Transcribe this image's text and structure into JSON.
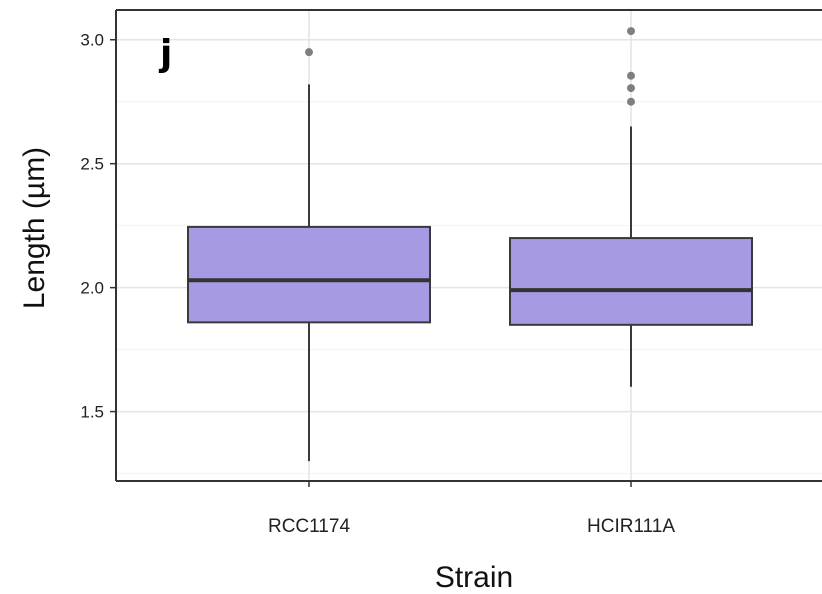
{
  "chart_data": {
    "type": "box",
    "panel_label": "j",
    "xlabel": "Strain",
    "ylabel": "Length (µm)",
    "categories": [
      "RCC1174",
      "HCIR111A"
    ],
    "y_ticks": [
      "1.5",
      "2.0",
      "2.5",
      "3.0"
    ],
    "ylim": [
      1.22,
      3.12
    ],
    "grid": true,
    "box_color": "#a59ae3",
    "box_edge_color": "#3a3a3a",
    "outlier_color": "#7f7f7f",
    "series": [
      {
        "category": "RCC1174",
        "whisker_low": 1.3,
        "q1": 1.86,
        "median": 2.03,
        "q3": 2.245,
        "whisker_high": 2.82,
        "outliers": [
          2.95
        ]
      },
      {
        "category": "HCIR111A",
        "whisker_low": 1.6,
        "q1": 1.85,
        "median": 1.99,
        "q3": 2.2,
        "whisker_high": 2.65,
        "outliers": [
          2.75,
          2.805,
          2.855,
          3.035
        ]
      }
    ]
  }
}
